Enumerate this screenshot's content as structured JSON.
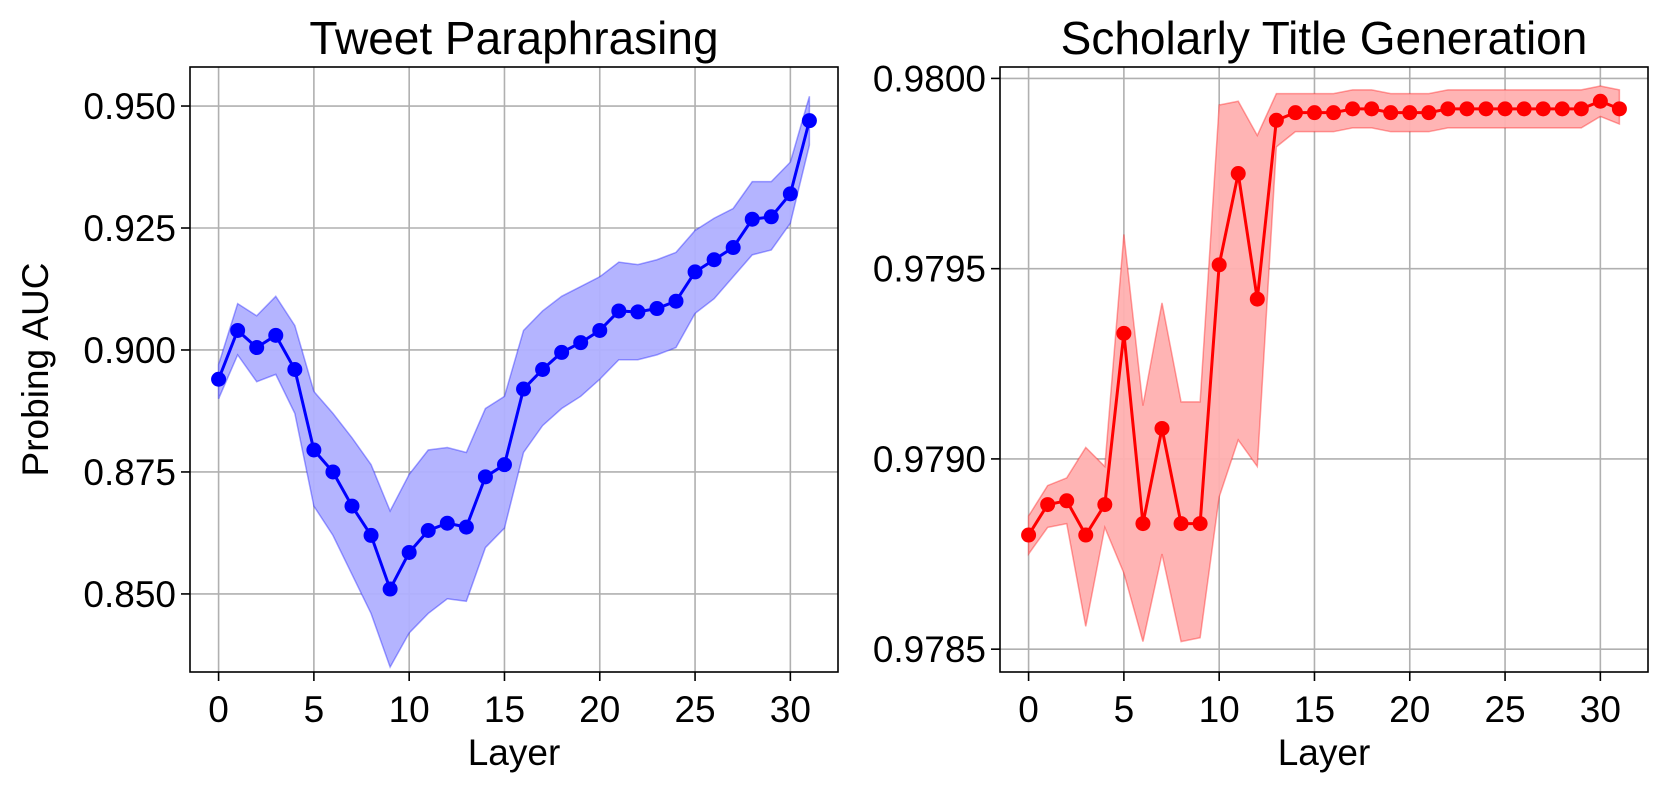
{
  "chart_data": [
    {
      "type": "line",
      "title": "Tweet Paraphrasing",
      "xlabel": "Layer",
      "ylabel": "Probing AUC",
      "color": "#0000ff",
      "band_color": "#b0b0ff",
      "xlim": [
        -1.5,
        32.5
      ],
      "ylim": [
        0.834,
        0.958
      ],
      "xticks": [
        0,
        5,
        10,
        15,
        20,
        25,
        30
      ],
      "yticks": [
        0.85,
        0.875,
        0.9,
        0.925,
        0.95
      ],
      "ytick_labels": [
        "0.850",
        "0.875",
        "0.900",
        "0.925",
        "0.950"
      ],
      "grid": true,
      "x": [
        0,
        1,
        2,
        3,
        4,
        5,
        6,
        7,
        8,
        9,
        10,
        11,
        12,
        13,
        14,
        15,
        16,
        17,
        18,
        19,
        20,
        21,
        22,
        23,
        24,
        25,
        26,
        27,
        28,
        29,
        30,
        31
      ],
      "series": [
        {
          "values": [
            0.894,
            0.904,
            0.9005,
            0.903,
            0.896,
            0.8795,
            0.875,
            0.868,
            0.862,
            0.851,
            0.8585,
            0.863,
            0.8645,
            0.8637,
            0.874,
            0.8765,
            0.892,
            0.896,
            0.8995,
            0.9015,
            0.904,
            0.908,
            0.9078,
            0.9085,
            0.91,
            0.916,
            0.9185,
            0.921,
            0.9268,
            0.9273,
            0.932,
            0.947
          ],
          "lower": [
            0.89,
            0.899,
            0.8935,
            0.895,
            0.887,
            0.868,
            0.862,
            0.854,
            0.846,
            0.835,
            0.842,
            0.846,
            0.849,
            0.8485,
            0.8595,
            0.8635,
            0.879,
            0.8845,
            0.888,
            0.8905,
            0.894,
            0.898,
            0.898,
            0.899,
            0.9005,
            0.9075,
            0.9105,
            0.915,
            0.9195,
            0.9205,
            0.926,
            0.942
          ],
          "upper": [
            0.897,
            0.9095,
            0.907,
            0.911,
            0.905,
            0.8915,
            0.887,
            0.882,
            0.8765,
            0.867,
            0.8745,
            0.8795,
            0.88,
            0.879,
            0.888,
            0.8905,
            0.904,
            0.908,
            0.911,
            0.913,
            0.915,
            0.918,
            0.9175,
            0.9185,
            0.92,
            0.9245,
            0.927,
            0.929,
            0.9345,
            0.9345,
            0.9385,
            0.952
          ]
        }
      ]
    },
    {
      "type": "line",
      "title": "Scholarly Title Generation",
      "xlabel": "Layer",
      "ylabel": "",
      "color": "#ff0000",
      "band_color": "#ffb0b0",
      "xlim": [
        -1.5,
        32.5
      ],
      "ylim": [
        0.97844,
        0.98003
      ],
      "xticks": [
        0,
        5,
        10,
        15,
        20,
        25,
        30
      ],
      "yticks": [
        0.9785,
        0.979,
        0.9795,
        0.98
      ],
      "ytick_labels": [
        "0.9785",
        "0.9790",
        "0.9795",
        "0.9800"
      ],
      "grid": true,
      "x": [
        0,
        1,
        2,
        3,
        4,
        5,
        6,
        7,
        8,
        9,
        10,
        11,
        12,
        13,
        14,
        15,
        16,
        17,
        18,
        19,
        20,
        21,
        22,
        23,
        24,
        25,
        26,
        27,
        28,
        29,
        30,
        31
      ],
      "series": [
        {
          "values": [
            0.9788,
            0.97888,
            0.97889,
            0.9788,
            0.97888,
            0.97933,
            0.97883,
            0.97908,
            0.97883,
            0.97883,
            0.97951,
            0.97975,
            0.97942,
            0.97989,
            0.97991,
            0.97991,
            0.97991,
            0.97992,
            0.97992,
            0.97991,
            0.97991,
            0.97991,
            0.97992,
            0.97992,
            0.97992,
            0.97992,
            0.97992,
            0.97992,
            0.97992,
            0.97992,
            0.97994,
            0.97992
          ],
          "lower": [
            0.97875,
            0.97882,
            0.97883,
            0.97856,
            0.97882,
            0.9787,
            0.97852,
            0.97875,
            0.97852,
            0.97853,
            0.9789,
            0.97905,
            0.97898,
            0.97982,
            0.97986,
            0.97986,
            0.97986,
            0.97987,
            0.97987,
            0.97986,
            0.97986,
            0.97986,
            0.97987,
            0.97987,
            0.97987,
            0.97987,
            0.97987,
            0.97987,
            0.97987,
            0.97987,
            0.9799,
            0.97988
          ],
          "upper": [
            0.97885,
            0.97893,
            0.97895,
            0.97903,
            0.97898,
            0.97959,
            0.97914,
            0.97941,
            0.97915,
            0.97915,
            0.97993,
            0.97994,
            0.97985,
            0.97996,
            0.97996,
            0.97996,
            0.97996,
            0.97997,
            0.97997,
            0.97996,
            0.97996,
            0.97996,
            0.97997,
            0.97997,
            0.97997,
            0.97997,
            0.97997,
            0.97997,
            0.97997,
            0.97997,
            0.97998,
            0.97997
          ]
        }
      ]
    }
  ]
}
